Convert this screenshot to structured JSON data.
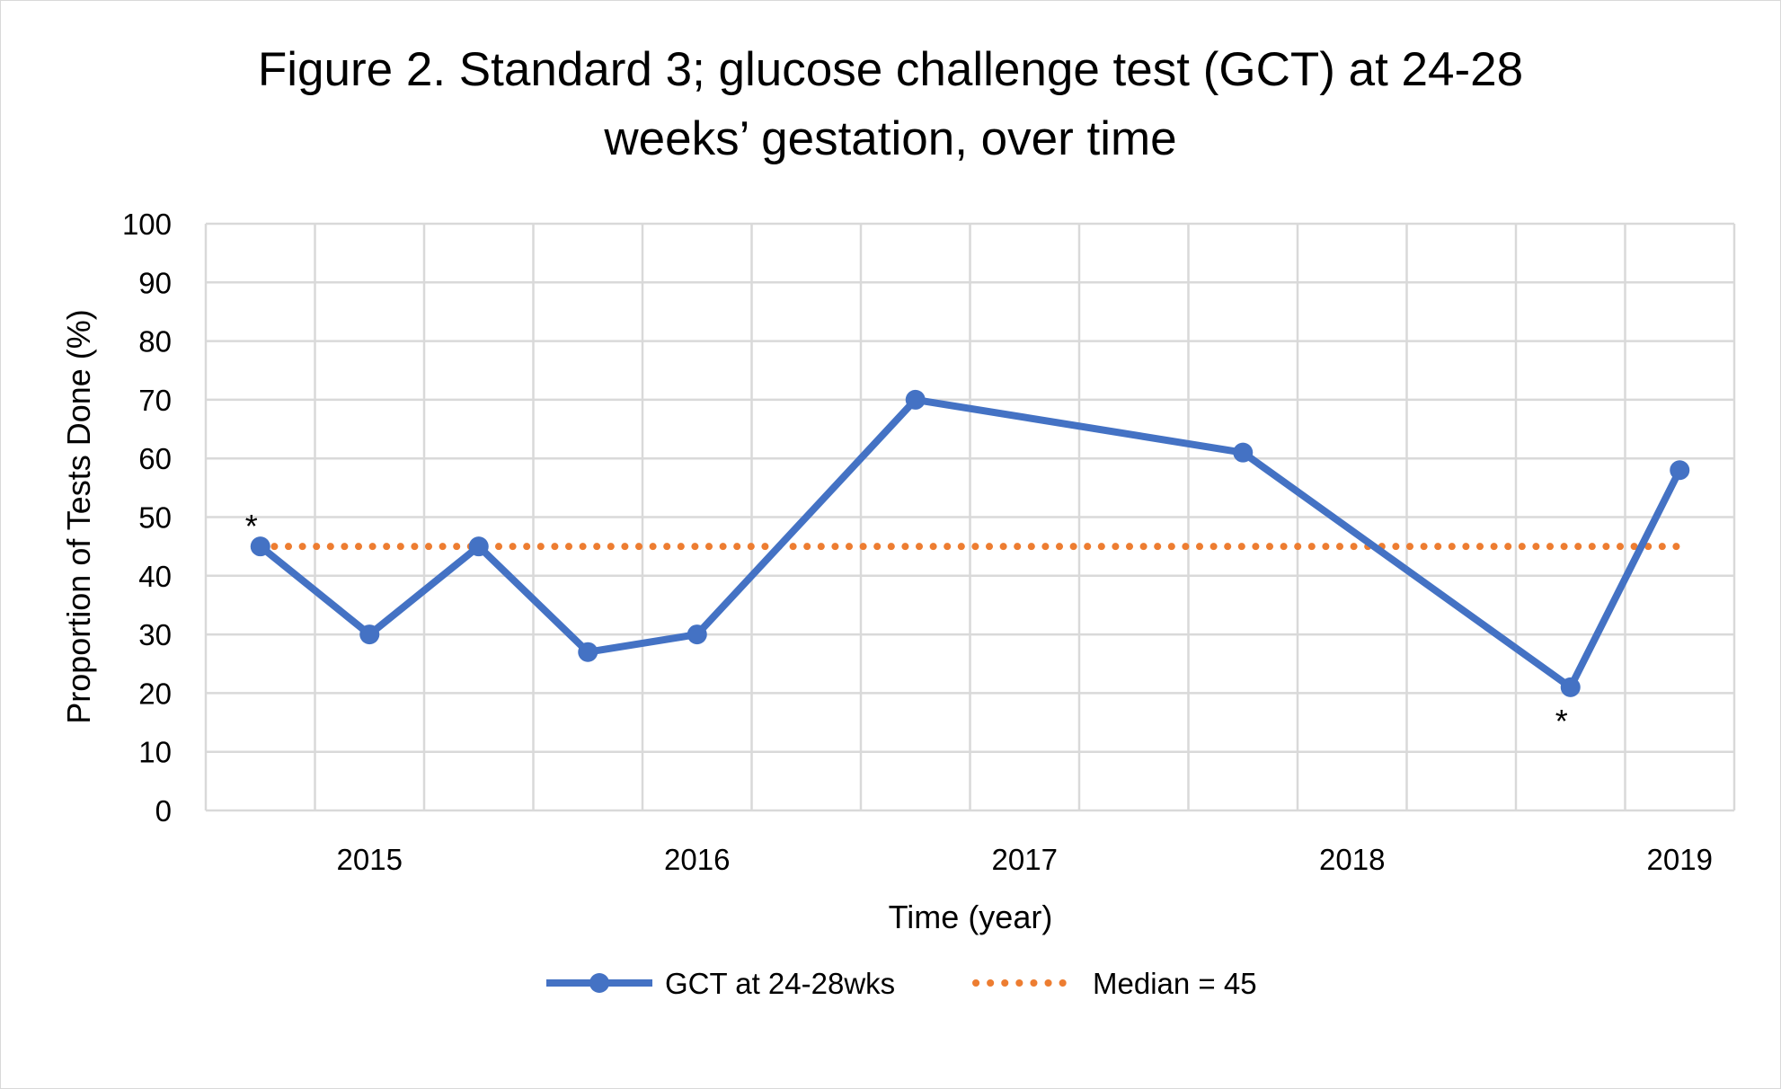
{
  "chart_data": {
    "type": "line",
    "title_lines": [
      "Figure 2. Standard 3; glucose challenge test (GCT) at 24-28",
      "weeks’ gestation, over time"
    ],
    "xlabel": "Time (year)",
    "ylabel": "Proportion of Tests Done (%)",
    "ylim": [
      0,
      100
    ],
    "yticks": [
      0,
      10,
      20,
      30,
      40,
      50,
      60,
      70,
      80,
      90,
      100
    ],
    "category_count": 14,
    "x_tick_labels": [
      {
        "category": 1,
        "label": "2015"
      },
      {
        "category": 4,
        "label": "2016"
      },
      {
        "category": 7,
        "label": "2017"
      },
      {
        "category": 10,
        "label": "2018"
      },
      {
        "category": 13,
        "label": "2019"
      }
    ],
    "grid": true,
    "series": [
      {
        "name": "GCT at 24-28wks",
        "color": "#4472c4",
        "marker": "circle",
        "points": [
          {
            "category": 0,
            "value": 45
          },
          {
            "category": 1,
            "value": 30
          },
          {
            "category": 2,
            "value": 45
          },
          {
            "category": 3,
            "value": 27
          },
          {
            "category": 4,
            "value": 30
          },
          {
            "category": 6,
            "value": 70
          },
          {
            "category": 9,
            "value": 61
          },
          {
            "category": 12,
            "value": 21
          },
          {
            "category": 13,
            "value": 58
          }
        ]
      },
      {
        "name": "Median = 45",
        "color": "#ed7d31",
        "style": "dotted",
        "value": 45,
        "from_category": 0,
        "to_category": 13
      }
    ],
    "annotations": [
      {
        "text": "*",
        "category": 0,
        "position": "above"
      },
      {
        "text": "*",
        "category": 12,
        "position": "below"
      }
    ],
    "legend_placement": "bottom"
  }
}
